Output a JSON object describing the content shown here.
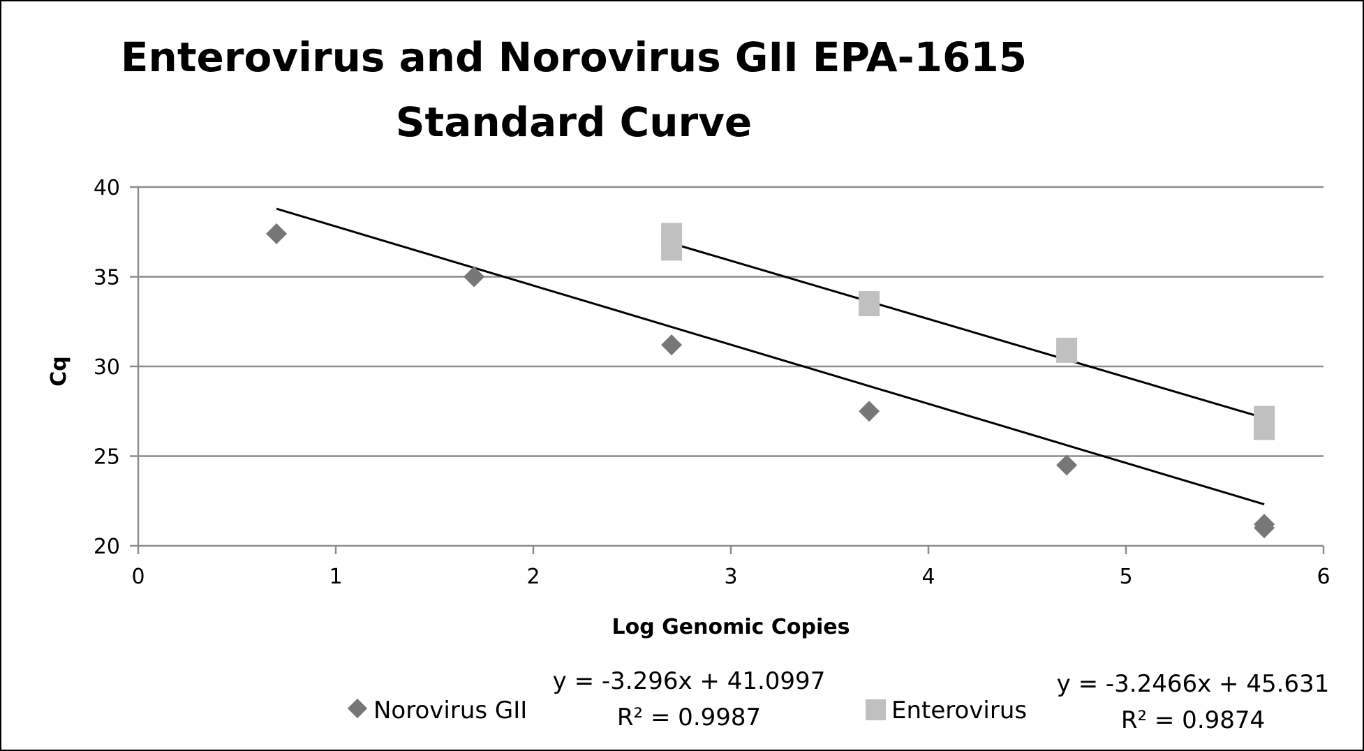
{
  "chart_data": {
    "type": "scatter",
    "title_lines": [
      "Enterovirus and Norovirus GII EPA-1615",
      "Standard Curve"
    ],
    "xlabel": "Log Genomic Copies",
    "ylabel": "Cq",
    "xlim": [
      0,
      6
    ],
    "ylim": [
      20,
      40
    ],
    "x_ticks": [
      0,
      1,
      2,
      3,
      4,
      5,
      6
    ],
    "y_ticks": [
      20,
      25,
      30,
      35,
      40
    ],
    "horizontal_grid": true,
    "legend_position": "bottom",
    "series": [
      {
        "name": "Norovirus GII",
        "marker": "diamond",
        "color": "#777777",
        "points": [
          {
            "x": 0.7,
            "y": 37.4
          },
          {
            "x": 1.7,
            "y": 35.0
          },
          {
            "x": 2.7,
            "y": 31.2
          },
          {
            "x": 3.7,
            "y": 27.5
          },
          {
            "x": 4.7,
            "y": 24.5
          },
          {
            "x": 5.7,
            "y": 21.2
          },
          {
            "x": 5.7,
            "y": 21.0
          }
        ],
        "trendline": {
          "slope": -3.296,
          "intercept": 41.0997,
          "x_range": [
            0.7,
            5.7
          ]
        },
        "equation_label": "y = -3.296x + 41.0997",
        "r2_label": "R² = 0.9987"
      },
      {
        "name": "Enterovirus",
        "marker": "square",
        "color": "#c0c0c0",
        "points": [
          {
            "x": 2.7,
            "y": 37.3
          },
          {
            "x": 2.7,
            "y": 36.6
          },
          {
            "x": 3.7,
            "y": 33.5
          },
          {
            "x": 4.7,
            "y": 30.9
          },
          {
            "x": 5.7,
            "y": 27.1
          },
          {
            "x": 5.7,
            "y": 26.6
          }
        ],
        "trendline": {
          "slope": -3.2466,
          "intercept": 45.631,
          "x_range": [
            2.7,
            5.7
          ]
        },
        "equation_label": "y = -3.2466x + 45.631",
        "r2_label": "R² = 0.9874"
      }
    ]
  }
}
